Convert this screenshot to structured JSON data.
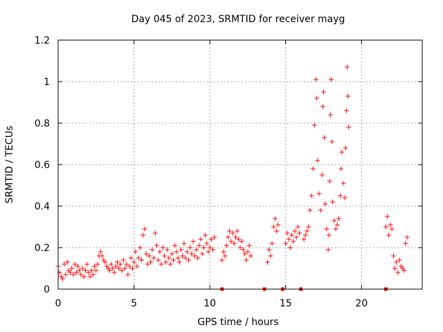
{
  "chart_data": {
    "type": "scatter",
    "title": "Day 045 of 2023, SRMTID for receiver mayg",
    "xlabel": "GPS time / hours",
    "ylabel": "SRMTID / TECUs",
    "xlim": [
      0,
      24
    ],
    "ylim": [
      0,
      1.2
    ],
    "x_ticks": [
      0,
      5,
      10,
      15,
      20
    ],
    "x_tick_labels": [
      "0",
      "5",
      "10",
      "15",
      "20"
    ],
    "y_ticks": [
      0,
      0.2,
      0.4,
      0.6,
      0.8,
      1,
      1.2
    ],
    "y_tick_labels": [
      "0",
      "0.2",
      "0.4",
      "0.6",
      "0.8",
      "1",
      "1.2"
    ],
    "grid": true,
    "marker": "+",
    "color": "#ff0000",
    "series": [
      {
        "name": "SRMTID",
        "points": [
          [
            0.0,
            0.11
          ],
          [
            0.1,
            0.08
          ],
          [
            0.2,
            0.06
          ],
          [
            0.3,
            0.05
          ],
          [
            0.4,
            0.12
          ],
          [
            0.5,
            0.07
          ],
          [
            0.6,
            0.13
          ],
          [
            0.7,
            0.09
          ],
          [
            0.8,
            0.08
          ],
          [
            0.9,
            0.1
          ],
          [
            1.0,
            0.07
          ],
          [
            1.1,
            0.12
          ],
          [
            1.2,
            0.08
          ],
          [
            1.3,
            0.11
          ],
          [
            1.4,
            0.09
          ],
          [
            1.5,
            0.07
          ],
          [
            1.6,
            0.1
          ],
          [
            1.7,
            0.06
          ],
          [
            1.8,
            0.09
          ],
          [
            1.9,
            0.12
          ],
          [
            2.0,
            0.08
          ],
          [
            2.1,
            0.06
          ],
          [
            2.2,
            0.09
          ],
          [
            2.3,
            0.07
          ],
          [
            2.4,
            0.11
          ],
          [
            2.5,
            0.09
          ],
          [
            2.6,
            0.12
          ],
          [
            2.7,
            0.16
          ],
          [
            2.8,
            0.18
          ],
          [
            2.9,
            0.16
          ],
          [
            3.0,
            0.14
          ],
          [
            3.1,
            0.13
          ],
          [
            3.2,
            0.11
          ],
          [
            3.3,
            0.1
          ],
          [
            3.4,
            0.09
          ],
          [
            3.5,
            0.12
          ],
          [
            3.6,
            0.1
          ],
          [
            3.7,
            0.08
          ],
          [
            3.8,
            0.11
          ],
          [
            3.9,
            0.13
          ],
          [
            4.0,
            0.1
          ],
          [
            4.1,
            0.12
          ],
          [
            4.2,
            0.09
          ],
          [
            4.3,
            0.14
          ],
          [
            4.4,
            0.1
          ],
          [
            4.5,
            0.12
          ],
          [
            4.6,
            0.07
          ],
          [
            4.7,
            0.11
          ],
          [
            4.8,
            0.15
          ],
          [
            4.9,
            0.1
          ],
          [
            5.0,
            0.13
          ],
          [
            5.1,
            0.18
          ],
          [
            5.2,
            0.11
          ],
          [
            5.3,
            0.15
          ],
          [
            5.4,
            0.2
          ],
          [
            5.5,
            0.14
          ],
          [
            5.6,
            0.26
          ],
          [
            5.7,
            0.29
          ],
          [
            5.8,
            0.17
          ],
          [
            5.9,
            0.12
          ],
          [
            6.0,
            0.16
          ],
          [
            6.1,
            0.13
          ],
          [
            6.2,
            0.19
          ],
          [
            6.3,
            0.15
          ],
          [
            6.4,
            0.27
          ],
          [
            6.5,
            0.21
          ],
          [
            6.6,
            0.14
          ],
          [
            6.7,
            0.18
          ],
          [
            6.8,
            0.12
          ],
          [
            6.9,
            0.2
          ],
          [
            7.0,
            0.16
          ],
          [
            7.1,
            0.13
          ],
          [
            7.2,
            0.19
          ],
          [
            7.3,
            0.15
          ],
          [
            7.4,
            0.12
          ],
          [
            7.5,
            0.17
          ],
          [
            7.6,
            0.14
          ],
          [
            7.7,
            0.21
          ],
          [
            7.8,
            0.18
          ],
          [
            7.9,
            0.15
          ],
          [
            8.0,
            0.13
          ],
          [
            8.1,
            0.19
          ],
          [
            8.2,
            0.16
          ],
          [
            8.3,
            0.22
          ],
          [
            8.4,
            0.15
          ],
          [
            8.5,
            0.18
          ],
          [
            8.6,
            0.14
          ],
          [
            8.7,
            0.2
          ],
          [
            8.8,
            0.17
          ],
          [
            8.9,
            0.23
          ],
          [
            9.0,
            0.16
          ],
          [
            9.1,
            0.19
          ],
          [
            9.2,
            0.15
          ],
          [
            9.3,
            0.21
          ],
          [
            9.4,
            0.24
          ],
          [
            9.5,
            0.17
          ],
          [
            9.6,
            0.2
          ],
          [
            9.7,
            0.26
          ],
          [
            9.8,
            0.22
          ],
          [
            9.9,
            0.18
          ],
          [
            10.0,
            0.2
          ],
          [
            10.1,
            0.24
          ],
          [
            10.2,
            0.19
          ],
          [
            10.3,
            0.25
          ],
          [
            10.8,
            0.14
          ],
          [
            10.9,
            0.18
          ],
          [
            11.0,
            0.16
          ],
          [
            11.1,
            0.21
          ],
          [
            11.2,
            0.25
          ],
          [
            11.3,
            0.28
          ],
          [
            11.4,
            0.23
          ],
          [
            11.5,
            0.27
          ],
          [
            11.6,
            0.22
          ],
          [
            11.7,
            0.25
          ],
          [
            11.8,
            0.28
          ],
          [
            11.9,
            0.24
          ],
          [
            12.0,
            0.2
          ],
          [
            12.1,
            0.23
          ],
          [
            12.2,
            0.19
          ],
          [
            12.3,
            0.17
          ],
          [
            12.4,
            0.14
          ],
          [
            12.5,
            0.18
          ],
          [
            12.6,
            0.21
          ],
          [
            12.7,
            0.16
          ],
          [
            13.8,
            0.13
          ],
          [
            13.9,
            0.19
          ],
          [
            14.0,
            0.16
          ],
          [
            14.1,
            0.22
          ],
          [
            14.2,
            0.3
          ],
          [
            14.3,
            0.34
          ],
          [
            14.4,
            0.28
          ],
          [
            14.5,
            0.31
          ],
          [
            15.0,
            0.22
          ],
          [
            15.1,
            0.27
          ],
          [
            15.2,
            0.24
          ],
          [
            15.3,
            0.2
          ],
          [
            15.4,
            0.26
          ],
          [
            15.5,
            0.23
          ],
          [
            15.6,
            0.28
          ],
          [
            15.7,
            0.25
          ],
          [
            15.8,
            0.3
          ],
          [
            15.9,
            0.27
          ],
          [
            16.2,
            0.24
          ],
          [
            16.3,
            0.26
          ],
          [
            16.4,
            0.28
          ],
          [
            16.5,
            0.3
          ],
          [
            16.6,
            0.38
          ],
          [
            16.7,
            0.45
          ],
          [
            16.8,
            0.58
          ],
          [
            16.9,
            0.79
          ],
          [
            17.0,
            1.01
          ],
          [
            17.05,
            0.92
          ],
          [
            17.1,
            0.62
          ],
          [
            17.2,
            0.46
          ],
          [
            17.3,
            0.38
          ],
          [
            17.4,
            0.55
          ],
          [
            17.45,
            0.88
          ],
          [
            17.5,
            0.95
          ],
          [
            17.55,
            0.73
          ],
          [
            17.6,
            0.41
          ],
          [
            17.7,
            0.29
          ],
          [
            17.8,
            0.19
          ],
          [
            17.85,
            0.26
          ],
          [
            17.9,
            0.52
          ],
          [
            17.95,
            0.84
          ],
          [
            18.0,
            1.01
          ],
          [
            18.05,
            0.71
          ],
          [
            18.1,
            0.42
          ],
          [
            18.2,
            0.33
          ],
          [
            18.3,
            0.29
          ],
          [
            18.4,
            0.31
          ],
          [
            18.5,
            0.34
          ],
          [
            18.6,
            0.45
          ],
          [
            18.65,
            0.58
          ],
          [
            18.7,
            0.66
          ],
          [
            18.8,
            0.51
          ],
          [
            18.9,
            0.44
          ],
          [
            18.95,
            0.68
          ],
          [
            19.0,
            0.86
          ],
          [
            19.05,
            1.07
          ],
          [
            19.1,
            0.93
          ],
          [
            19.15,
            0.78
          ],
          [
            21.6,
            0.3
          ],
          [
            21.7,
            0.35
          ],
          [
            21.8,
            0.26
          ],
          [
            21.9,
            0.31
          ],
          [
            22.0,
            0.29
          ],
          [
            22.1,
            0.16
          ],
          [
            22.2,
            0.1
          ],
          [
            22.3,
            0.13
          ],
          [
            22.4,
            0.08
          ],
          [
            22.5,
            0.14
          ],
          [
            22.6,
            0.11
          ],
          [
            22.7,
            0.1
          ],
          [
            22.8,
            0.09
          ],
          [
            22.9,
            0.22
          ],
          [
            23.0,
            0.25
          ]
        ]
      }
    ],
    "gap_markers_x": [
      10.8,
      13.6,
      14.8,
      16.0,
      21.6
    ],
    "gap_markers_y": 0
  }
}
